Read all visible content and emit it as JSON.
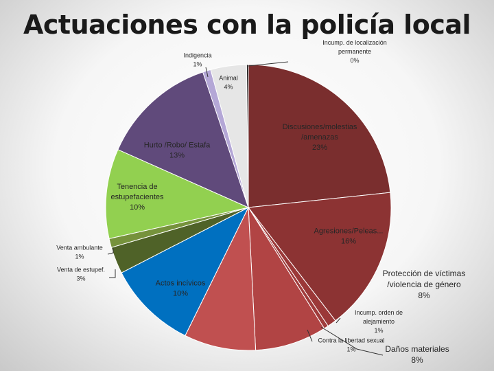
{
  "chart_data": {
    "type": "pie",
    "title": "Actuaciones con la policía local",
    "slices": [
      {
        "label": "Discusiones/molestias /amenazas",
        "value": 23,
        "pct": "23%",
        "color": "#7a2e2e"
      },
      {
        "label": "Agresiones/Peleas...",
        "value": 16,
        "pct": "16%",
        "color": "#8c3333"
      },
      {
        "label": "Incump. orden de alejamiento",
        "value": 1,
        "pct": "1%",
        "color": "#9b3838"
      },
      {
        "label": "Contra la libertad sexual",
        "value": 0.5,
        "pct": "1%",
        "color": "#a03b3b"
      },
      {
        "label": "Protección de víctimas /violencia de género",
        "value": 8,
        "pct": "8%",
        "color": "#b14444"
      },
      {
        "label": "Daños materiales",
        "value": 8,
        "pct": "8%",
        "color": "#c05050"
      },
      {
        "label": "Actos incívicos",
        "value": 10,
        "pct": "10%",
        "color": "#0070c0"
      },
      {
        "label": "Venta de estupef.",
        "value": 3,
        "pct": "3%",
        "color": "#4f6228"
      },
      {
        "label": "Venta ambulante",
        "value": 1,
        "pct": "1%",
        "color": "#76923c"
      },
      {
        "label": "Tenencia de estupefacientes",
        "value": 10,
        "pct": "10%",
        "color": "#92d050"
      },
      {
        "label": "Hurto /Robo/ Estafa",
        "value": 13,
        "pct": "13%",
        "color": "#604a7b"
      },
      {
        "label": "Indigencia",
        "value": 0.9,
        "pct": "1%",
        "color": "#b4a7d6"
      },
      {
        "label": "Animal",
        "value": 4,
        "pct": "4%",
        "color": "#e6e6e6"
      },
      {
        "label": "Incump. de localización permanente",
        "value": 0.2,
        "pct": "0%",
        "color": "#1a1a1a"
      }
    ]
  }
}
